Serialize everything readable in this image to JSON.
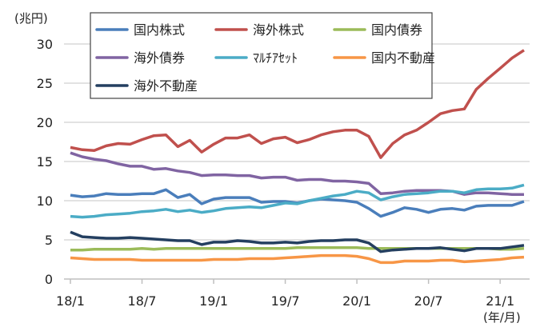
{
  "chart_data": {
    "type": "line",
    "ylabel": "(兆円)",
    "xlabel": "(年/月)",
    "ylim": [
      0,
      30
    ],
    "yticks": [
      "0",
      "5",
      "10",
      "15",
      "20",
      "25",
      "30"
    ],
    "grid": true,
    "legend_placement": "top",
    "x": [
      "18/1",
      "18/2",
      "18/3",
      "18/4",
      "18/5",
      "18/6",
      "18/7",
      "18/8",
      "18/9",
      "18/10",
      "18/11",
      "18/12",
      "19/1",
      "19/2",
      "19/3",
      "19/4",
      "19/5",
      "19/6",
      "19/7",
      "19/8",
      "19/9",
      "19/10",
      "19/11",
      "19/12",
      "20/1",
      "20/2",
      "20/3",
      "20/4",
      "20/5",
      "20/6",
      "20/7",
      "20/8",
      "20/9",
      "20/10",
      "20/11",
      "20/12",
      "21/1",
      "21/2",
      "21/3"
    ],
    "xticks": [
      "18/1",
      "18/7",
      "19/1",
      "19/7",
      "20/1",
      "20/7",
      "21/1"
    ],
    "series": [
      {
        "name": "国内株式",
        "color": "#4A7EBB",
        "values": [
          10.7,
          10.5,
          10.6,
          10.9,
          10.8,
          10.8,
          10.9,
          10.9,
          11.4,
          10.4,
          10.8,
          9.6,
          10.2,
          10.4,
          10.4,
          10.4,
          9.8,
          9.9,
          9.9,
          9.7,
          10.0,
          10.2,
          10.1,
          10.0,
          9.8,
          9.0,
          8.0,
          8.5,
          9.1,
          8.9,
          8.5,
          8.9,
          9.0,
          8.8,
          9.3,
          9.4,
          9.4,
          9.4,
          9.9
        ]
      },
      {
        "name": "海外株式",
        "color": "#C0504D",
        "values": [
          16.8,
          16.5,
          16.4,
          17.0,
          17.3,
          17.2,
          17.8,
          18.3,
          18.4,
          16.9,
          17.7,
          16.2,
          17.2,
          18.0,
          18.0,
          18.4,
          17.3,
          17.9,
          18.1,
          17.4,
          17.8,
          18.4,
          18.8,
          19.0,
          19.0,
          18.2,
          15.5,
          17.3,
          18.4,
          19.0,
          20.0,
          21.1,
          21.5,
          21.7,
          24.2,
          25.6,
          26.9,
          28.2,
          29.2
        ]
      },
      {
        "name": "国内債券",
        "color": "#9BBB59",
        "values": [
          3.7,
          3.7,
          3.8,
          3.8,
          3.8,
          3.8,
          3.9,
          3.8,
          3.9,
          3.9,
          3.9,
          3.9,
          3.9,
          3.9,
          3.9,
          3.9,
          3.9,
          3.9,
          3.9,
          4.0,
          4.0,
          4.0,
          4.0,
          4.0,
          4.0,
          3.9,
          3.9,
          3.9,
          3.9,
          3.9,
          3.9,
          3.9,
          3.9,
          3.9,
          3.9,
          3.9,
          3.8,
          3.8,
          3.9
        ]
      },
      {
        "name": "海外債券",
        "color": "#8064A2",
        "values": [
          16.1,
          15.6,
          15.3,
          15.1,
          14.7,
          14.4,
          14.4,
          14.0,
          14.1,
          13.8,
          13.6,
          13.2,
          13.3,
          13.3,
          13.2,
          13.2,
          12.9,
          13.0,
          13.0,
          12.6,
          12.7,
          12.7,
          12.5,
          12.5,
          12.4,
          12.2,
          10.9,
          11.0,
          11.2,
          11.3,
          11.3,
          11.3,
          11.2,
          10.8,
          11.0,
          11.0,
          10.9,
          10.8,
          10.8
        ]
      },
      {
        "name": "ﾏﾙﾁｱｾｯﾄ",
        "color": "#4BACC6",
        "values": [
          8.0,
          7.9,
          8.0,
          8.2,
          8.3,
          8.4,
          8.6,
          8.7,
          8.9,
          8.6,
          8.8,
          8.5,
          8.7,
          9.0,
          9.1,
          9.2,
          9.1,
          9.4,
          9.7,
          9.6,
          10.0,
          10.3,
          10.6,
          10.8,
          11.2,
          11.0,
          10.1,
          10.5,
          10.8,
          10.9,
          11.0,
          11.2,
          11.2,
          11.0,
          11.4,
          11.5,
          11.5,
          11.6,
          12.0
        ]
      },
      {
        "name": "国内不動産",
        "color": "#F79646",
        "values": [
          2.7,
          2.6,
          2.5,
          2.5,
          2.5,
          2.5,
          2.4,
          2.4,
          2.4,
          2.4,
          2.4,
          2.4,
          2.5,
          2.5,
          2.5,
          2.6,
          2.6,
          2.6,
          2.7,
          2.8,
          2.9,
          3.0,
          3.0,
          3.0,
          2.9,
          2.6,
          2.1,
          2.1,
          2.3,
          2.3,
          2.3,
          2.4,
          2.4,
          2.2,
          2.3,
          2.4,
          2.5,
          2.7,
          2.8
        ]
      },
      {
        "name": "海外不動産",
        "color": "#243F60",
        "values": [
          6.0,
          5.4,
          5.3,
          5.2,
          5.2,
          5.3,
          5.2,
          5.1,
          5.0,
          4.9,
          4.9,
          4.4,
          4.7,
          4.7,
          4.9,
          4.8,
          4.6,
          4.6,
          4.7,
          4.6,
          4.8,
          4.9,
          4.9,
          5.0,
          5.0,
          4.6,
          3.5,
          3.7,
          3.8,
          3.9,
          3.9,
          4.0,
          3.8,
          3.6,
          3.9,
          3.9,
          3.9,
          4.1,
          4.3
        ]
      }
    ]
  }
}
